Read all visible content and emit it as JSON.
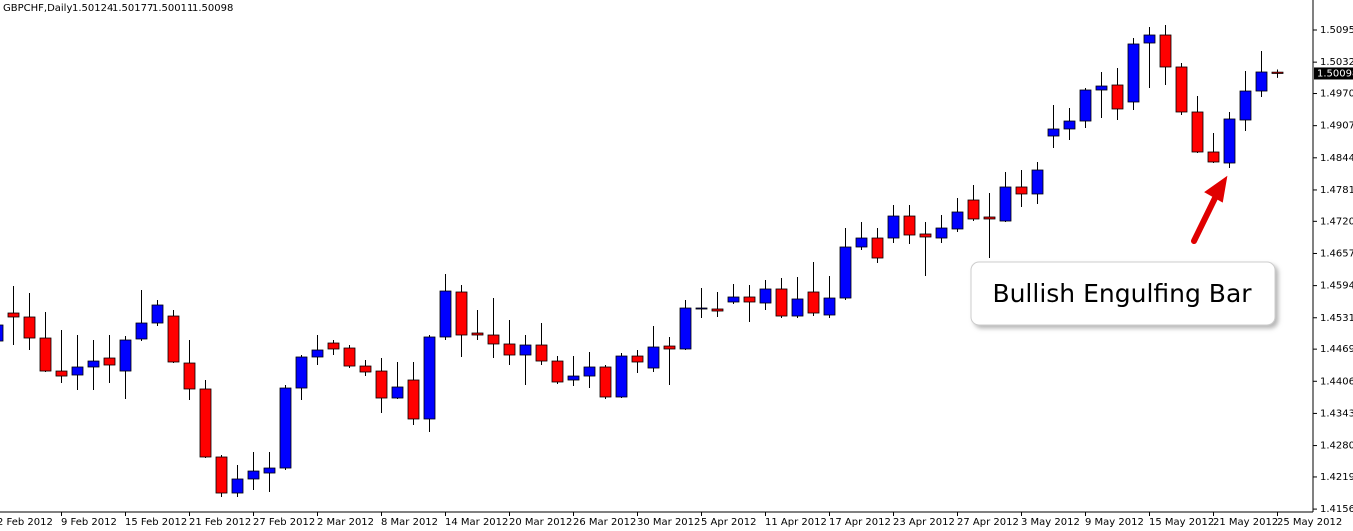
{
  "chart_data": {
    "type": "candlestick",
    "title": "GBPCHF,Daily",
    "annotation": "Bullish Engulfing Bar",
    "up_color": "#0000ff",
    "down_color": "#ff0000",
    "ylim": [
      1.41503,
      1.51538
    ],
    "yticks": [
      {
        "value": 1.5095,
        "label": "1.50950"
      },
      {
        "value": 1.5032,
        "label": "1.50320"
      },
      {
        "value": 1.49705,
        "label": "1.49705"
      },
      {
        "value": 1.49075,
        "label": "1.49075"
      },
      {
        "value": 1.48445,
        "label": "1.48445"
      },
      {
        "value": 1.47815,
        "label": "1.47815"
      },
      {
        "value": 1.472,
        "label": "1.47200"
      },
      {
        "value": 1.4657,
        "label": "1.46570"
      },
      {
        "value": 1.4594,
        "label": "1.45940"
      },
      {
        "value": 1.4531,
        "label": "1.45310"
      },
      {
        "value": 1.44695,
        "label": "1.44695"
      },
      {
        "value": 1.44065,
        "label": "1.44065"
      },
      {
        "value": 1.43435,
        "label": "1.43435"
      },
      {
        "value": 1.42805,
        "label": "1.42805"
      },
      {
        "value": 1.4219,
        "label": "1.42190"
      },
      {
        "value": 1.4156,
        "label": "1.41560"
      }
    ],
    "categories": [
      "2 Feb 2012",
      null,
      null,
      null,
      "9 Feb 2012",
      null,
      null,
      null,
      "15 Feb 2012",
      null,
      null,
      null,
      "21 Feb 2012",
      null,
      null,
      null,
      "27 Feb 2012",
      null,
      null,
      null,
      "2 Mar 2012",
      null,
      null,
      null,
      "8 Mar 2012",
      null,
      null,
      null,
      "14 Mar 2012",
      null,
      null,
      null,
      "20 Mar 2012",
      null,
      null,
      null,
      "26 Mar 2012",
      null,
      null,
      null,
      "30 Mar 2012",
      null,
      null,
      null,
      "5 Apr 2012",
      null,
      null,
      null,
      "11 Apr 2012",
      null,
      null,
      null,
      "17 Apr 2012",
      null,
      null,
      null,
      "23 Apr 2012",
      null,
      null,
      null,
      "27 Apr 2012",
      null,
      null,
      null,
      "3 May 2012",
      null,
      null,
      null,
      "9 May 2012",
      null,
      null,
      null,
      "15 May 2012",
      null,
      null,
      null,
      "21 May 2012",
      null,
      null,
      null,
      "25 May 2012"
    ],
    "ohlc": [
      [
        1.44854,
        1.45266,
        1.44776,
        1.45168
      ],
      [
        1.45403,
        1.45932,
        1.44776,
        1.45325
      ],
      [
        1.45325,
        1.45795,
        1.44678,
        1.44913
      ],
      [
        1.44913,
        1.45423,
        1.44247,
        1.44266
      ],
      [
        1.44266,
        1.4507,
        1.44031,
        1.44168
      ],
      [
        1.44188,
        1.44972,
        1.43894,
        1.44345
      ],
      [
        1.44345,
        1.44874,
        1.43894,
        1.44462
      ],
      [
        1.44521,
        1.44972,
        1.44031,
        1.44384
      ],
      [
        1.44266,
        1.44952,
        1.43718,
        1.44874
      ],
      [
        1.44894,
        1.45854,
        1.44854,
        1.45207
      ],
      [
        1.45207,
        1.45658,
        1.45148,
        1.4556
      ],
      [
        1.45344,
        1.45462,
        1.44423,
        1.44443
      ],
      [
        1.44423,
        1.44874,
        1.43698,
        1.43914
      ],
      [
        1.43914,
        1.4409,
        1.42561,
        1.42581
      ],
      [
        1.42581,
        1.4262,
        1.41797,
        1.41875
      ],
      [
        1.41875,
        1.42424,
        1.41797,
        1.4215
      ],
      [
        1.4215,
        1.42679,
        1.41934,
        1.42306
      ],
      [
        1.42267,
        1.42679,
        1.41895,
        1.42365
      ],
      [
        1.42365,
        1.43992,
        1.42326,
        1.43933
      ],
      [
        1.43933,
        1.4458,
        1.43698,
        1.44541
      ],
      [
        1.44541,
        1.44972,
        1.44384,
        1.44678
      ],
      [
        1.44815,
        1.44874,
        1.4458,
        1.44698
      ],
      [
        1.44717,
        1.44776,
        1.44325,
        1.44364
      ],
      [
        1.44364,
        1.44482,
        1.44168,
        1.44247
      ],
      [
        1.44266,
        1.44521,
        1.43443,
        1.43737
      ],
      [
        1.43737,
        1.44443,
        1.43718,
        1.43953
      ],
      [
        1.4409,
        1.44443,
        1.43208,
        1.43326
      ],
      [
        1.43326,
        1.44972,
        1.43071,
        1.44933
      ],
      [
        1.44933,
        1.46168,
        1.44874,
        1.45834
      ],
      [
        1.45815,
        1.45952,
        1.44541,
        1.44972
      ],
      [
        1.45011,
        1.45462,
        1.44874,
        1.44972
      ],
      [
        1.44972,
        1.45697,
        1.44521,
        1.44796
      ],
      [
        1.44796,
        1.45266,
        1.44384,
        1.4458
      ],
      [
        1.4458,
        1.44972,
        1.43992,
        1.44776
      ],
      [
        1.44776,
        1.45207,
        1.44384,
        1.44462
      ],
      [
        1.44462,
        1.4456,
        1.44012,
        1.44051
      ],
      [
        1.4409,
        1.4456,
        1.43972,
        1.44168
      ],
      [
        1.44168,
        1.44639,
        1.43933,
        1.44345
      ],
      [
        1.44345,
        1.44384,
        1.43718,
        1.43757
      ],
      [
        1.43757,
        1.44619,
        1.43737,
        1.4456
      ],
      [
        1.4456,
        1.44678,
        1.44227,
        1.44443
      ],
      [
        1.44325,
        1.45148,
        1.44247,
        1.44737
      ],
      [
        1.44756,
        1.44933,
        1.43992,
        1.44698
      ],
      [
        1.44698,
        1.45658,
        1.44678,
        1.45501
      ],
      [
        1.45482,
        1.45893,
        1.45305,
        1.45501
      ],
      [
        1.45482,
        1.45815,
        1.45325,
        1.45442
      ],
      [
        1.45619,
        1.45972,
        1.4558,
        1.45717
      ],
      [
        1.45717,
        1.45952,
        1.45227,
        1.45619
      ],
      [
        1.45599,
        1.4605,
        1.45462,
        1.45874
      ],
      [
        1.45874,
        1.46089,
        1.45305,
        1.45344
      ],
      [
        1.45344,
        1.46109,
        1.45305,
        1.45678
      ],
      [
        1.45815,
        1.46403,
        1.45344,
        1.45403
      ],
      [
        1.45364,
        1.46128,
        1.45305,
        1.45697
      ],
      [
        1.45697,
        1.47069,
        1.45658,
        1.46697
      ],
      [
        1.46697,
        1.47187,
        1.46638,
        1.46873
      ],
      [
        1.46873,
        1.47069,
        1.46383,
        1.46481
      ],
      [
        1.46873,
        1.4752,
        1.46775,
        1.47304
      ],
      [
        1.47304,
        1.4752,
        1.46756,
        1.46932
      ],
      [
        1.46952,
        1.47187,
        1.46128,
        1.46893
      ],
      [
        1.46873,
        1.47324,
        1.46775,
        1.47069
      ],
      [
        1.4705,
        1.47657,
        1.46991,
        1.47383
      ],
      [
        1.47618,
        1.47912,
        1.47206,
        1.47246
      ],
      [
        1.47285,
        1.47755,
        1.46481,
        1.47246
      ],
      [
        1.47206,
        1.48167,
        1.47187,
        1.47873
      ],
      [
        1.47873,
        1.48206,
        1.47481,
        1.47736
      ],
      [
        1.47736,
        1.48363,
        1.4754,
        1.48206
      ],
      [
        1.48872,
        1.4948,
        1.48637,
        1.4901
      ],
      [
        1.4901,
        1.49421,
        1.48794,
        1.49166
      ],
      [
        1.49166,
        1.49813,
        1.49029,
        1.49774
      ],
      [
        1.49774,
        1.50127,
        1.49225,
        1.49852
      ],
      [
        1.49872,
        1.50205,
        1.49186,
        1.49402
      ],
      [
        1.49539,
        1.50793,
        1.49382,
        1.50676
      ],
      [
        1.50695,
        1.51009,
        1.49813,
        1.50852
      ],
      [
        1.50852,
        1.51048,
        1.49872,
        1.50225
      ],
      [
        1.50225,
        1.50303,
        1.49284,
        1.49343
      ],
      [
        1.49343,
        1.49656,
        1.48539,
        1.48559
      ],
      [
        1.48559,
        1.48931,
        1.48343,
        1.48363
      ],
      [
        1.48343,
        1.49343,
        1.48245,
        1.49206
      ],
      [
        1.49186,
        1.50146,
        1.4897,
        1.49754
      ],
      [
        1.49754,
        1.50538,
        1.49637,
        1.50127
      ],
      [
        1.50124,
        1.50177,
        1.50011,
        1.50098
      ]
    ]
  }
}
